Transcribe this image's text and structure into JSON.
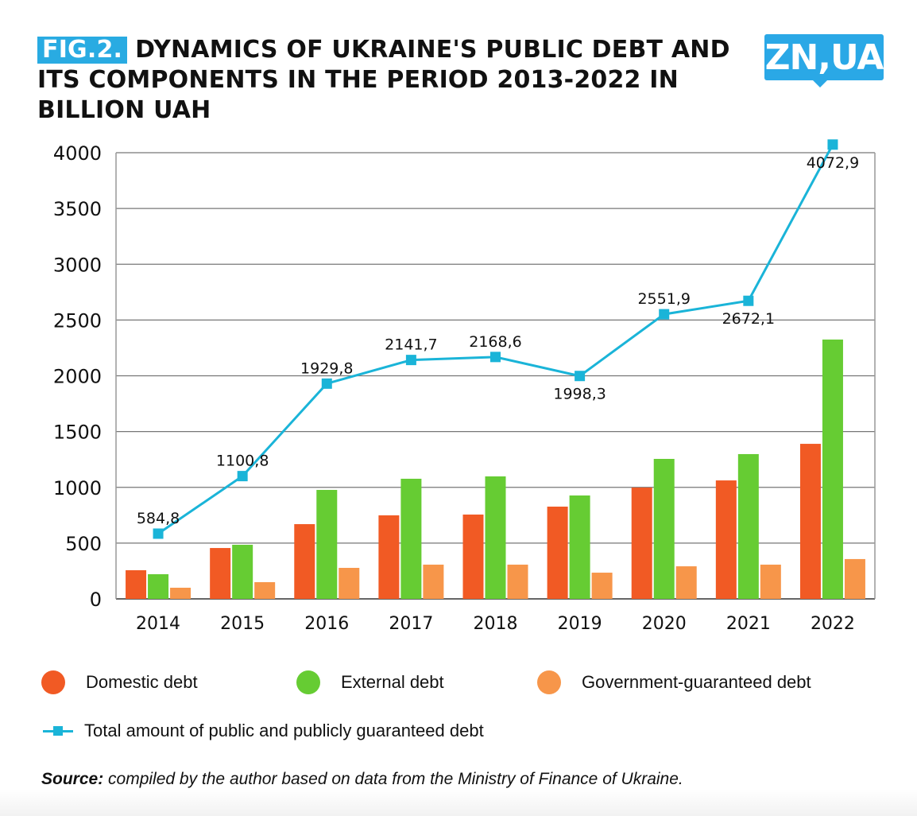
{
  "header": {
    "fig_label": "FIG.2.",
    "title": "DYNAMICS OF UKRAINE'S PUBLIC DEBT AND ITS COMPONENTS IN THE PERIOD 2013-2022 IN BILLION UAH",
    "logo_text": "ZN,UA",
    "accent_color": "#29abe2"
  },
  "chart_data": {
    "type": "bar",
    "title": "Dynamics of Ukraine's public debt and its components in the period 2013-2022 in billion UAH",
    "xlabel": "",
    "ylabel": "",
    "ylim": [
      0,
      4000
    ],
    "yticks": [
      0,
      500,
      1000,
      1500,
      2000,
      2500,
      3000,
      3500,
      4000
    ],
    "grid": true,
    "categories": [
      "2014",
      "2015",
      "2016",
      "2017",
      "2018",
      "2019",
      "2020",
      "2021",
      "2022"
    ],
    "series": [
      {
        "name": "Domestic debt",
        "type": "bar",
        "color": "#f15a24",
        "values": [
          257,
          456,
          670,
          749,
          756,
          827,
          998,
          1062,
          1390
        ]
      },
      {
        "name": "External debt",
        "type": "bar",
        "color": "#66cc33",
        "values": [
          221,
          485,
          977,
          1077,
          1098,
          927,
          1255,
          1298,
          2325
        ]
      },
      {
        "name": "Government-guaranteed debt",
        "type": "bar",
        "color": "#f7964a",
        "values": [
          100,
          150,
          278,
          307,
          307,
          235,
          292,
          307,
          357
        ]
      },
      {
        "name": "Total amount of public and publicly guaranteed debt",
        "type": "line",
        "color": "#1ab4d8",
        "values": [
          584.8,
          1100.8,
          1929.8,
          2141.7,
          2168.6,
          1998.3,
          2551.9,
          2672.1,
          4072.9
        ],
        "labels": [
          "584,8",
          "1100,8",
          "1929,8",
          "2141,7",
          "2168,6",
          "1998,3",
          "2551,9",
          "2672,1",
          "4072,9"
        ],
        "label_positions": [
          "above",
          "above",
          "above",
          "above",
          "above",
          "below",
          "above",
          "below",
          "below"
        ]
      }
    ],
    "legend_position": "bottom"
  },
  "legend": {
    "domestic": "Domestic debt",
    "external": "External debt",
    "guaranteed": "Government-guaranteed debt",
    "total": "Total amount of public and publicly guaranteed debt"
  },
  "source": {
    "label": "Source:",
    "text": " compiled by the author based on data from the Ministry of Finance of Ukraine."
  }
}
